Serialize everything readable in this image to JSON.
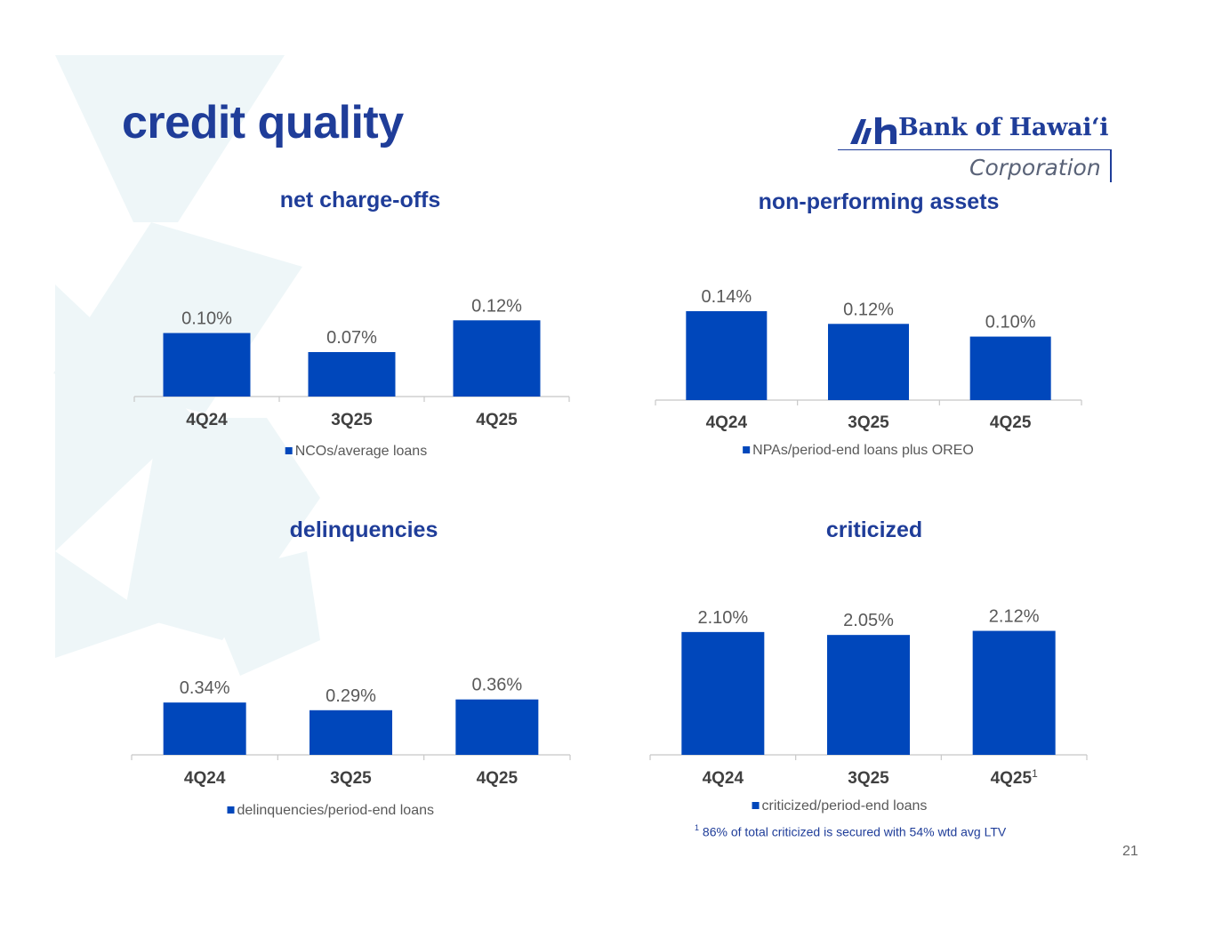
{
  "page": {
    "title": "credit quality",
    "page_number": "21"
  },
  "logo": {
    "name": "Bank of Hawaiʻi",
    "subtitle": "Corporation"
  },
  "colors": {
    "bar": "#0047bb",
    "title": "#1f3d99",
    "value_label": "#595959",
    "axis_label": "#404040",
    "background_mark": "#eef6f8"
  },
  "footnote": {
    "marker": "1",
    "text": "86% of total criticized is secured with 54% wtd avg LTV"
  },
  "chart_data": [
    {
      "type": "bar",
      "title": "net charge-offs",
      "categories": [
        "4Q24",
        "3Q25",
        "4Q25"
      ],
      "category_superscripts": [
        "",
        "",
        ""
      ],
      "series": [
        {
          "name": "NCOs/average loans",
          "values": [
            0.1,
            0.07,
            0.12
          ]
        }
      ],
      "value_labels": [
        "0.10%",
        "0.07%",
        "0.12%"
      ],
      "unit": "%",
      "ylim": [
        0,
        0.21
      ],
      "grid": false,
      "legend": "bottom"
    },
    {
      "type": "bar",
      "title": "non-performing assets",
      "categories": [
        "4Q24",
        "3Q25",
        "4Q25"
      ],
      "category_superscripts": [
        "",
        "",
        ""
      ],
      "series": [
        {
          "name": "NPAs/period-end loans plus OREO",
          "values": [
            0.14,
            0.12,
            0.1
          ]
        }
      ],
      "value_labels": [
        "0.14%",
        "0.12%",
        "0.10%"
      ],
      "unit": "%",
      "ylim": [
        0,
        0.21
      ],
      "grid": false,
      "legend": "bottom"
    },
    {
      "type": "bar",
      "title": "delinquencies",
      "categories": [
        "4Q24",
        "3Q25",
        "4Q25"
      ],
      "category_superscripts": [
        "",
        "",
        ""
      ],
      "series": [
        {
          "name": "delinquencies/period-end loans",
          "values": [
            0.34,
            0.29,
            0.36
          ]
        }
      ],
      "value_labels": [
        "0.34%",
        "0.29%",
        "0.36%"
      ],
      "unit": "%",
      "ylim": [
        0,
        1.3
      ],
      "grid": false,
      "legend": "bottom"
    },
    {
      "type": "bar",
      "title": "criticized",
      "categories": [
        "4Q24",
        "3Q25",
        "4Q25"
      ],
      "category_superscripts": [
        "",
        "",
        "1"
      ],
      "series": [
        {
          "name": "criticized/period-end loans",
          "values": [
            2.1,
            2.05,
            2.12
          ]
        }
      ],
      "value_labels": [
        "2.10%",
        "2.05%",
        "2.12%"
      ],
      "unit": "%",
      "ylim": [
        0,
        2.25
      ],
      "grid": false,
      "legend": "bottom"
    }
  ]
}
